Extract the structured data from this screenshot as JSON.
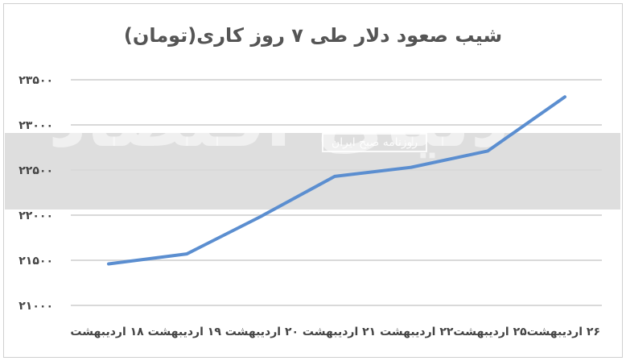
{
  "chart_data": {
    "type": "line",
    "title": "شیب صعود دلار طی ۷ روز کاری(تومان)",
    "xlabel": "",
    "ylabel": "",
    "ylim": [
      21000,
      23500
    ],
    "yticks": [
      "۲۱۰۰۰",
      "۲۱۵۰۰",
      "۲۲۰۰۰",
      "۲۲۵۰۰",
      "۲۳۰۰۰",
      "۲۳۵۰۰"
    ],
    "ytick_values": [
      21000,
      21500,
      22000,
      22500,
      23000,
      23500
    ],
    "categories": [
      "۱۸ اردیبهشت",
      "۱۹ اردیبهشت",
      "۲۰ اردیبهشت",
      "۲۱ اردیبهشت",
      "۲۲ اردیبهشت",
      "۲۵ اردیبهشت",
      "۲۶ اردیبهشت"
    ],
    "values": [
      21460,
      21570,
      21980,
      22430,
      22530,
      22710,
      23310
    ],
    "x_axis_text": "۲۶ اردیبهشت۲۵ اردیبهشت۲۲ اردیبهشت ۲۱ اردیبهشت ۲۰ اردیبهشت ۱۹ اردیبهشت ۱۸ اردیبهشت",
    "grid": true,
    "line_color": "#5b8ed0",
    "grid_color": "#d9d9d9"
  },
  "watermark": {
    "logo_text": "دنیای اقتصاد",
    "subtitle": "روزنامه صبح ایران"
  }
}
